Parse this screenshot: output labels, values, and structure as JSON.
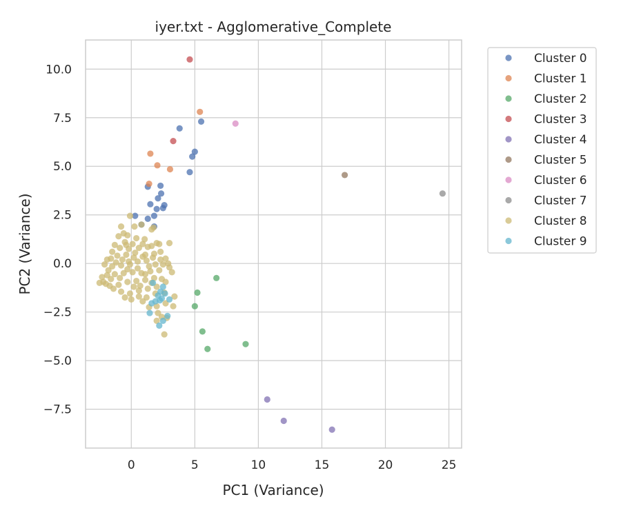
{
  "chart_data": {
    "type": "scatter",
    "title": "iyer.txt - Agglomerative_Complete",
    "xlabel": "PC1 (Variance)",
    "ylabel": "PC2 (Variance)",
    "xlim": [
      -3.6,
      26.0
    ],
    "ylim": [
      -9.5,
      11.5
    ],
    "xticks": [
      0,
      5,
      10,
      15,
      20,
      25
    ],
    "yticks": [
      -7.5,
      -5.0,
      -2.5,
      0.0,
      2.5,
      5.0,
      7.5,
      10.0
    ],
    "xtick_labels": [
      "0",
      "5",
      "10",
      "15",
      "20",
      "25"
    ],
    "ytick_labels": [
      "−7.5",
      "−5.0",
      "−2.5",
      "0.0",
      "2.5",
      "5.0",
      "7.5",
      "10.0"
    ],
    "grid": true,
    "legend_position": "outside-top-right",
    "series": [
      {
        "name": "Cluster 0",
        "color": "#4c72b0",
        "points": [
          [
            3.8,
            6.95
          ],
          [
            5.5,
            7.3
          ],
          [
            5.0,
            5.75
          ],
          [
            4.8,
            5.5
          ],
          [
            4.6,
            4.7
          ],
          [
            1.3,
            3.95
          ],
          [
            2.3,
            4.0
          ],
          [
            2.1,
            3.35
          ],
          [
            2.35,
            3.6
          ],
          [
            1.5,
            3.05
          ],
          [
            2.6,
            3.0
          ],
          [
            2.0,
            2.8
          ],
          [
            2.5,
            2.85
          ],
          [
            1.3,
            2.3
          ],
          [
            1.8,
            2.45
          ],
          [
            0.3,
            2.45
          ],
          [
            0.8,
            2.0
          ],
          [
            1.8,
            1.9
          ]
        ]
      },
      {
        "name": "Cluster 1",
        "color": "#dd8452",
        "points": [
          [
            5.4,
            7.8
          ],
          [
            1.5,
            5.65
          ],
          [
            2.05,
            5.05
          ],
          [
            3.05,
            4.85
          ],
          [
            1.4,
            4.1
          ]
        ]
      },
      {
        "name": "Cluster 2",
        "color": "#55a868",
        "points": [
          [
            6.7,
            -0.75
          ],
          [
            5.2,
            -1.5
          ],
          [
            5.0,
            -2.2
          ],
          [
            5.6,
            -3.5
          ],
          [
            9.0,
            -4.15
          ],
          [
            6.0,
            -4.4
          ]
        ]
      },
      {
        "name": "Cluster 3",
        "color": "#c44e52",
        "points": [
          [
            4.6,
            10.5
          ],
          [
            3.3,
            6.3
          ]
        ]
      },
      {
        "name": "Cluster 4",
        "color": "#8172b3",
        "points": [
          [
            10.7,
            -7.0
          ],
          [
            12.0,
            -8.1
          ],
          [
            15.8,
            -8.55
          ]
        ]
      },
      {
        "name": "Cluster 5",
        "color": "#937860",
        "points": [
          [
            16.8,
            4.55
          ]
        ]
      },
      {
        "name": "Cluster 6",
        "color": "#da8bc3",
        "points": [
          [
            8.2,
            7.2
          ]
        ]
      },
      {
        "name": "Cluster 7",
        "color": "#8c8c8c",
        "points": [
          [
            24.5,
            3.6
          ]
        ]
      },
      {
        "name": "Cluster 8",
        "color": "#ccb974",
        "points": [
          [
            -0.1,
            2.45
          ],
          [
            0.25,
            1.9
          ],
          [
            0.8,
            2.0
          ],
          [
            1.6,
            1.75
          ],
          [
            1.75,
            1.85
          ],
          [
            -0.8,
            1.9
          ],
          [
            -0.6,
            1.55
          ],
          [
            -1.0,
            1.4
          ],
          [
            -0.3,
            1.45
          ],
          [
            0.4,
            1.3
          ],
          [
            0.1,
            1.0
          ],
          [
            -0.5,
            1.1
          ],
          [
            -1.3,
            0.95
          ],
          [
            -0.9,
            0.8
          ],
          [
            -0.2,
            0.75
          ],
          [
            0.6,
            0.8
          ],
          [
            1.3,
            0.85
          ],
          [
            0.9,
            1.0
          ],
          [
            1.6,
            0.9
          ],
          [
            2.0,
            1.05
          ],
          [
            3.0,
            1.05
          ],
          [
            2.3,
            0.6
          ],
          [
            2.7,
            0.25
          ],
          [
            1.8,
            0.5
          ],
          [
            1.1,
            0.45
          ],
          [
            0.3,
            0.55
          ],
          [
            -0.4,
            0.45
          ],
          [
            -1.1,
            0.4
          ],
          [
            -1.6,
            0.25
          ],
          [
            -1.9,
            0.2
          ],
          [
            -2.1,
            -0.05
          ],
          [
            -1.5,
            -0.15
          ],
          [
            -0.8,
            -0.1
          ],
          [
            -0.1,
            -0.05
          ],
          [
            0.5,
            0.1
          ],
          [
            1.2,
            0.15
          ],
          [
            1.9,
            -0.05
          ],
          [
            2.5,
            -0.05
          ],
          [
            3.0,
            -0.2
          ],
          [
            2.2,
            -0.35
          ],
          [
            1.5,
            -0.4
          ],
          [
            0.8,
            -0.5
          ],
          [
            0.1,
            -0.45
          ],
          [
            -0.6,
            -0.5
          ],
          [
            -1.3,
            -0.55
          ],
          [
            -1.9,
            -0.6
          ],
          [
            -2.2,
            -0.95
          ],
          [
            -2.5,
            -1.0
          ],
          [
            -1.7,
            -1.15
          ],
          [
            -1.0,
            -1.1
          ],
          [
            -0.3,
            -0.95
          ],
          [
            0.4,
            -0.9
          ],
          [
            1.1,
            -0.85
          ],
          [
            1.8,
            -0.75
          ],
          [
            2.4,
            -0.8
          ],
          [
            2.7,
            -0.95
          ],
          [
            2.0,
            -1.2
          ],
          [
            1.3,
            -1.3
          ],
          [
            0.6,
            -1.4
          ],
          [
            -0.1,
            -1.55
          ],
          [
            -0.8,
            -1.45
          ],
          [
            -1.4,
            -1.3
          ],
          [
            -2.0,
            -1.05
          ],
          [
            -0.5,
            -1.75
          ],
          [
            0.0,
            -1.85
          ],
          [
            0.6,
            -1.7
          ],
          [
            1.2,
            -1.75
          ],
          [
            1.9,
            -1.55
          ],
          [
            2.6,
            -1.5
          ],
          [
            3.4,
            -1.7
          ],
          [
            3.3,
            -2.2
          ],
          [
            2.7,
            -2.05
          ],
          [
            2.0,
            -2.2
          ],
          [
            1.4,
            -2.25
          ],
          [
            0.9,
            -1.95
          ],
          [
            2.1,
            -2.55
          ],
          [
            2.8,
            -2.8
          ],
          [
            2.4,
            -2.75
          ],
          [
            2.0,
            -2.95
          ],
          [
            2.6,
            -3.65
          ],
          [
            -1.2,
            0.05
          ],
          [
            -0.7,
            0.2
          ],
          [
            0.2,
            0.3
          ],
          [
            0.9,
            0.35
          ],
          [
            1.4,
            -0.15
          ],
          [
            -0.3,
            -0.3
          ],
          [
            0.5,
            -0.25
          ],
          [
            -1.6,
            -0.8
          ],
          [
            1.6,
            -1.0
          ],
          [
            -0.4,
            0.95
          ],
          [
            2.3,
            0.2
          ],
          [
            -1.5,
            0.6
          ],
          [
            1.05,
            1.25
          ],
          [
            0.2,
            -1.2
          ],
          [
            -0.9,
            -0.75
          ],
          [
            1.7,
            0.3
          ],
          [
            2.9,
            0.0
          ],
          [
            0.7,
            -1.15
          ],
          [
            -0.2,
            0.1
          ],
          [
            -1.8,
            -0.35
          ],
          [
            1.1,
            -0.55
          ],
          [
            2.2,
            1.0
          ],
          [
            -2.3,
            -0.7
          ],
          [
            3.2,
            -0.45
          ]
        ]
      },
      {
        "name": "Cluster 9",
        "color": "#64b5cd",
        "points": [
          [
            2.5,
            -1.2
          ],
          [
            2.3,
            -1.45
          ],
          [
            2.1,
            -1.65
          ],
          [
            2.4,
            -1.8
          ],
          [
            1.9,
            -1.95
          ],
          [
            2.25,
            -1.9
          ],
          [
            1.6,
            -2.05
          ],
          [
            1.7,
            -1.0
          ],
          [
            3.0,
            -1.85
          ],
          [
            2.2,
            -3.2
          ],
          [
            2.5,
            -2.95
          ],
          [
            2.85,
            -2.7
          ],
          [
            1.45,
            -2.55
          ],
          [
            2.65,
            -1.55
          ]
        ]
      }
    ]
  }
}
